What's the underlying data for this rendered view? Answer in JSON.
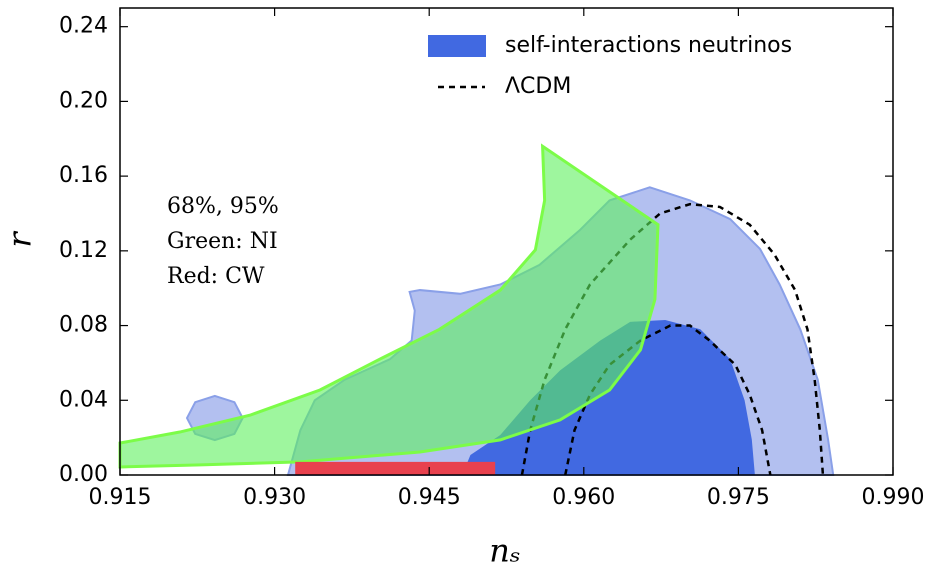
{
  "chart_data": {
    "type": "contour",
    "xlabel": "nₛ",
    "ylabel": "r",
    "xlim": [
      0.915,
      0.99
    ],
    "ylim": [
      0,
      0.25
    ],
    "xticks": [
      0.915,
      {
        "value": 0.93,
        "label": "0.930"
      },
      0.945,
      {
        "value": 0.96,
        "label": "0.960"
      },
      0.975,
      {
        "value": 0.99,
        "label": "0.990"
      }
    ],
    "yticks": [
      {
        "value": 0,
        "label": "0.00"
      },
      0.04,
      0.08,
      0.12,
      0.16,
      {
        "value": 0.2,
        "label": "0.20"
      },
      0.24
    ],
    "annotations": [
      "68%, 95%",
      "Green: NI",
      "Red: CW"
    ],
    "legend": "upper right",
    "series": [
      {
        "name": "self-interactions neutrinos",
        "color": "#4169e1",
        "style": "filled",
        "contours": [
          {
            "fill": "#b3c0f0",
            "x": [
              0.9313,
              0.9325,
              0.9339,
              0.9368,
              0.9412,
              0.9433,
              0.9436,
              0.9431,
              0.9441,
              0.948,
              0.9519,
              0.9557,
              0.9596,
              0.9625,
              0.9664,
              0.9703,
              0.9742,
              0.9771,
              0.979,
              0.981,
              0.9827,
              0.9837,
              0.9842
            ],
            "y": [
              0,
              0.024,
              0.04,
              0.051,
              0.062,
              0.072,
              0.088,
              0.098,
              0.099,
              0.097,
              0.102,
              0.1125,
              0.131,
              0.147,
              0.154,
              0.147,
              0.137,
              0.121,
              0.102,
              0.078,
              0.051,
              0.019,
              0
            ]
          },
          {
            "fill": "#b3c0f0",
            "x": [
              0.9215,
              0.9223,
              0.9242,
              0.9261,
              0.9269,
              0.9261,
              0.9242,
              0.9223
            ],
            "y": [
              0.0305,
              0.039,
              0.0423,
              0.039,
              0.0305,
              0.022,
              0.0187,
              0.022
            ]
          },
          {
            "fill": "#4169e1",
            "x": [
              0.9482,
              0.949,
              0.9519,
              0.9548,
              0.9577,
              0.9616,
              0.9645,
              0.9679,
              0.9713,
              0.9742,
              0.9756,
              0.9763,
              0.9766
            ],
            "y": [
              0,
              0.0107,
              0.0214,
              0.04,
              0.056,
              0.072,
              0.082,
              0.083,
              0.078,
              0.062,
              0.04,
              0.019,
              0
            ]
          }
        ]
      },
      {
        "name": "ΛCDM",
        "color": "#000000",
        "style": "dashed",
        "contours": [
          {
            "x": [
              0.954,
              0.9548,
              0.9562,
              0.9582,
              0.9606,
              0.9645,
              0.9674,
              0.9703,
              0.9732,
              0.9761,
              0.9785,
              0.9805,
              0.9817,
              0.9824,
              0.9829,
              0.9832
            ],
            "y": [
              0,
              0.024,
              0.051,
              0.078,
              0.102,
              0.126,
              0.14,
              0.145,
              0.1435,
              0.134,
              0.118,
              0.099,
              0.078,
              0.051,
              0.024,
              0
            ]
          },
          {
            "x": [
              0.9582,
              0.9591,
              0.9606,
              0.9625,
              0.9655,
              0.9684,
              0.9703,
              0.9722,
              0.9747,
              0.9761,
              0.9773,
              0.9781
            ],
            "y": [
              0,
              0.024,
              0.043,
              0.059,
              0.072,
              0.08,
              0.08,
              0.072,
              0.059,
              0.043,
              0.024,
              0
            ]
          }
        ]
      },
      {
        "color": "#7cfc48",
        "style": "filled",
        "contours": [
          {
            "fill": "#5ef05e",
            "x": [
              0.915,
              0.9228,
              0.9325,
              0.9441,
              0.9519,
              0.9577,
              0.9625,
              0.9655,
              0.9669,
              0.9672,
              0.956,
              0.9562,
              0.9553,
              0.9519,
              0.946,
              0.9402,
              0.9344,
              0.9276,
              0.9208,
              0.915
            ],
            "y": [
              0.0043,
              0.0054,
              0.007,
              0.0123,
              0.0188,
              0.0295,
              0.0455,
              0.067,
              0.094,
              0.134,
              0.176,
              0.147,
              0.1205,
              0.099,
              0.078,
              0.062,
              0.0455,
              0.032,
              0.023,
              0.0171
            ]
          }
        ]
      },
      {
        "color": "#e8414e",
        "style": "filled",
        "contours": [
          {
            "fill": "#e8414e",
            "x": [
              0.932,
              0.9514,
              0.9514,
              0.932
            ],
            "y": [
              0,
              0,
              0.007,
              0.007
            ]
          }
        ]
      }
    ]
  }
}
